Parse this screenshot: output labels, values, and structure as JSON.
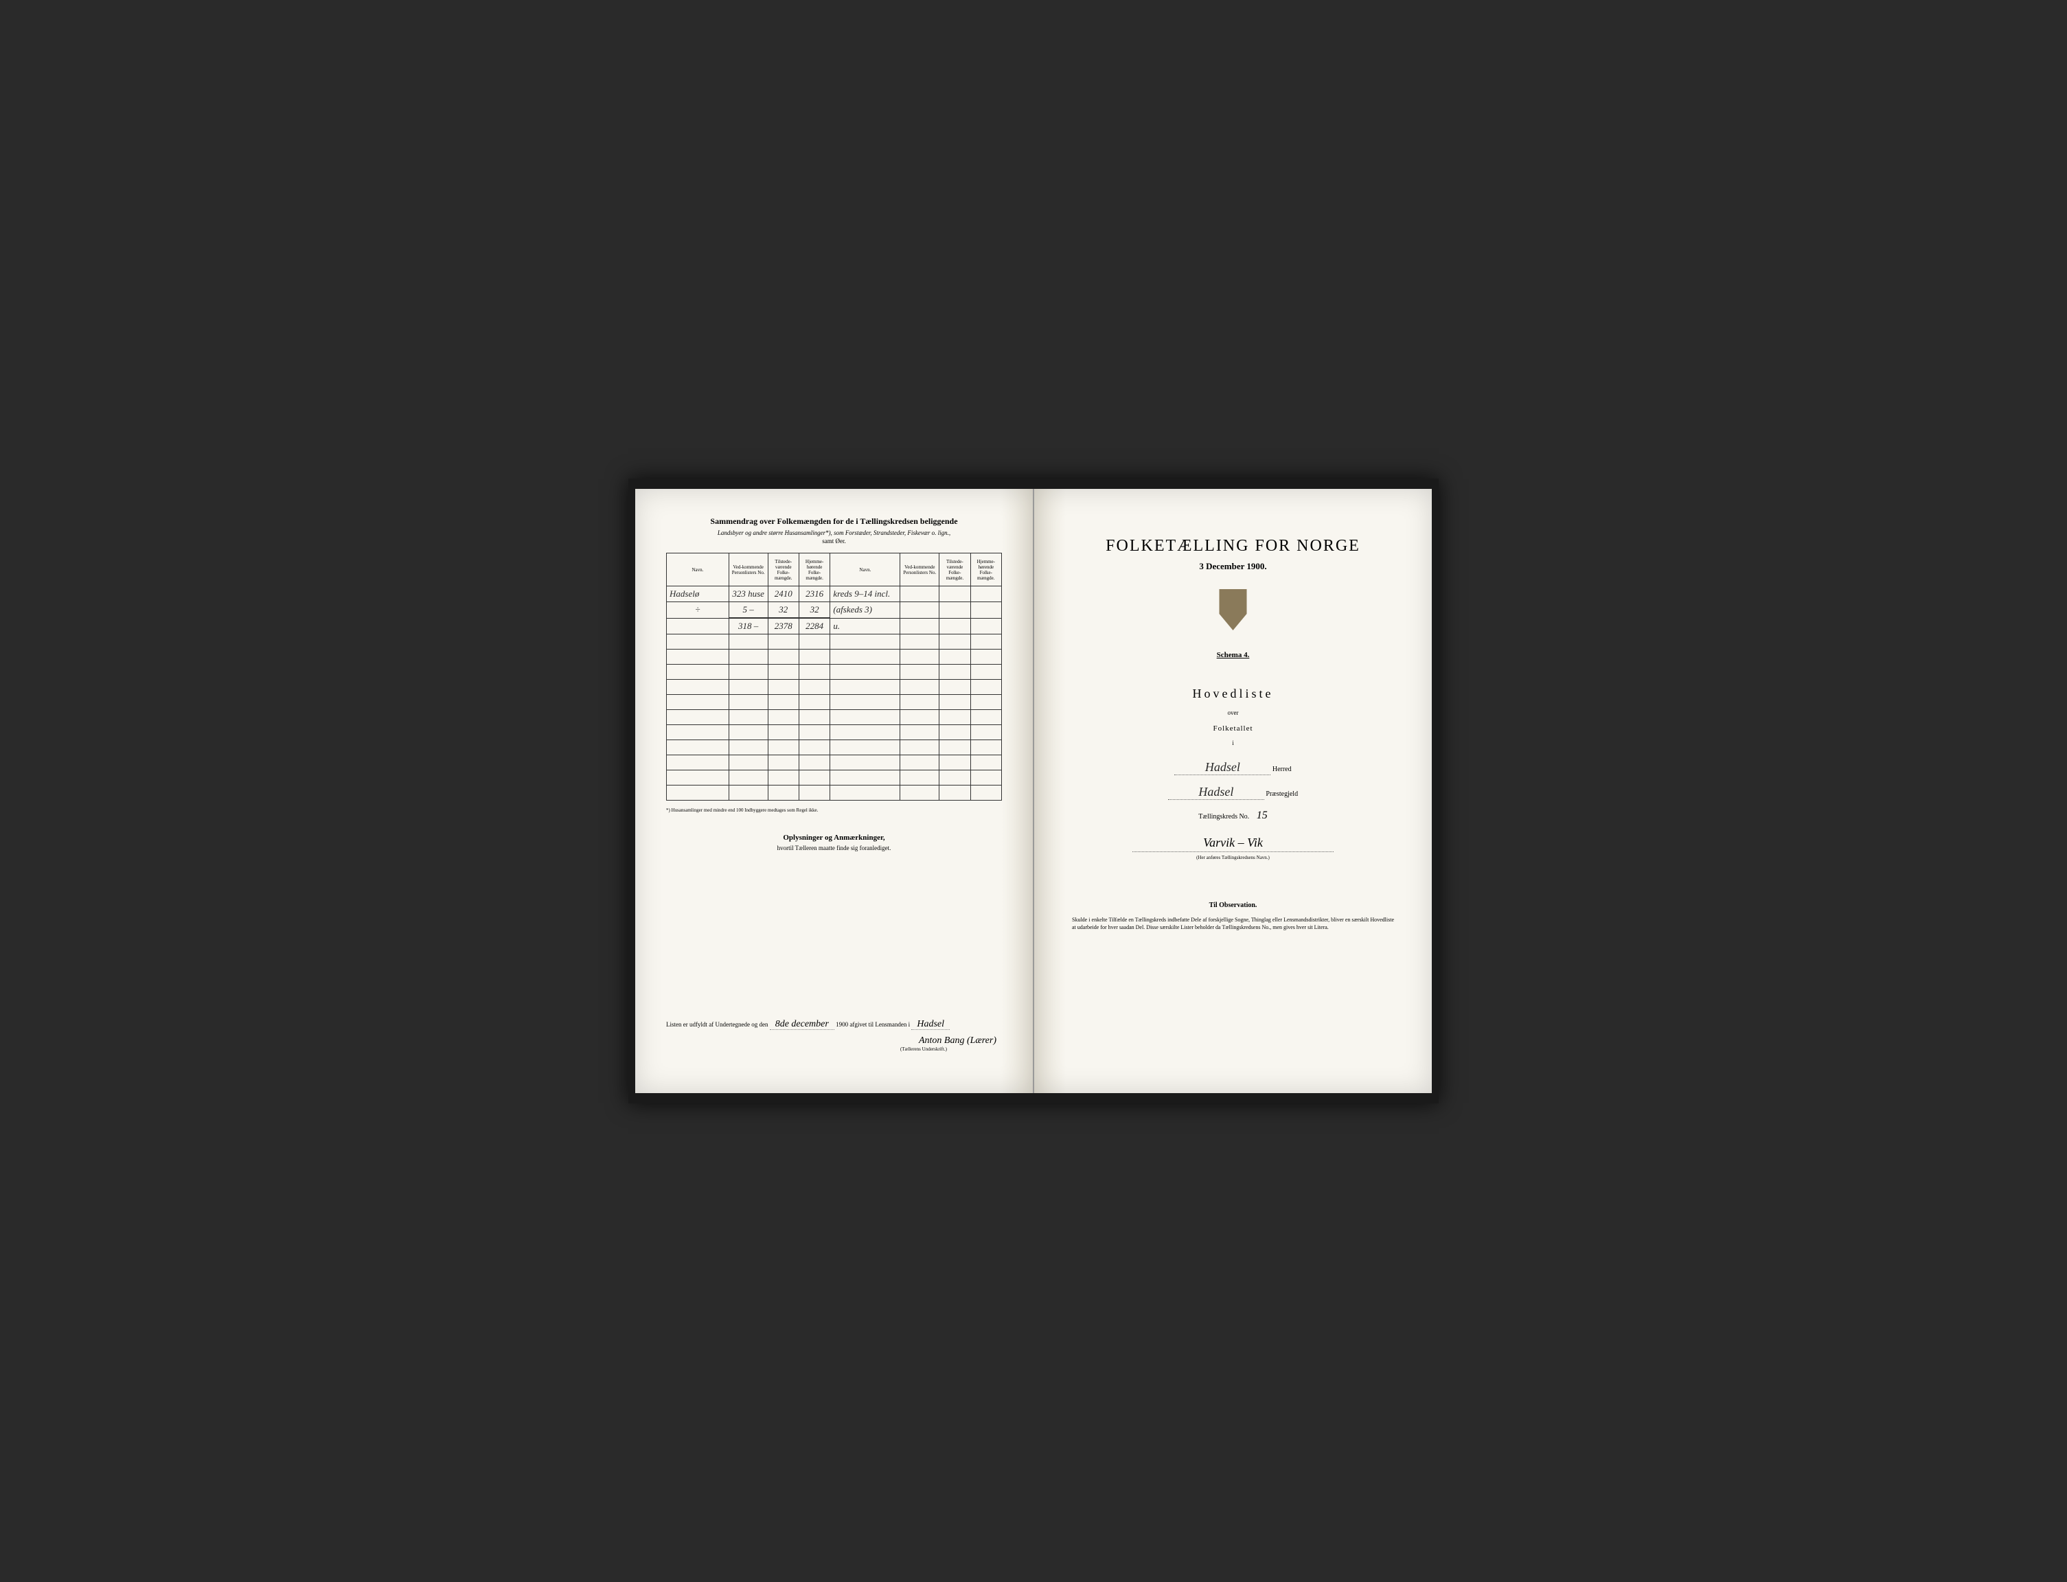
{
  "left": {
    "title": "Sammendrag over Folkemængden for de i Tællingskredsen beliggende",
    "subtitle": "Landsbyer og andre større Husansamlinger*), som Forstæder, Strandsteder, Fiskevær o. lign.,",
    "subtitle2": "samt Øer.",
    "headers": {
      "navn": "Navn.",
      "vedkom": "Ved-kommende Personlisters No.",
      "tilstede": "Tilstede-værende Folke-mængde.",
      "hjemme": "Hjemme-hørende Folke-mængde.",
      "navn2": "Navn.",
      "vedkom2": "Ved-kommende Personlisters No.",
      "tilstede2": "Tilstede-værende Folke-mængde.",
      "hjemme2": "Hjemme-hørende Folke-mængde."
    },
    "rows": [
      {
        "navn": "Hadselø",
        "no": "323 huse",
        "til": "2410",
        "hjem": "2316",
        "navn2": "kreds 9–14 incl.",
        "no2": "",
        "til2": "",
        "hjem2": ""
      },
      {
        "navn": "÷",
        "no": "5 –",
        "til": "32",
        "hjem": "32",
        "navn2": "(afskeds 3)",
        "no2": "",
        "til2": "",
        "hjem2": ""
      },
      {
        "navn": "",
        "no": "318 –",
        "til": "2378",
        "hjem": "2284",
        "navn2": "u.",
        "no2": "",
        "til2": "",
        "hjem2": ""
      }
    ],
    "footnote": "*) Husansamlinger med mindre end 100 Indbyggere medtages som Regel ikke.",
    "oplys_title": "Oplysninger og Anmærkninger,",
    "oplys_sub": "hvortil Tælleren maatte finde sig foranlediget.",
    "submit_prefix": "Listen er udfyldt af Undertegnede og den",
    "submit_date": "8de december",
    "submit_year": "1900 afgivet til Lensmanden i",
    "submit_place": "Hadsel",
    "signature": "Anton Bang (Lærer)",
    "sig_label": "(Tællerens Underskrift.)"
  },
  "right": {
    "title": "FOLKETÆLLING FOR NORGE",
    "date": "3 December 1900.",
    "schema": "Schema 4.",
    "hovedliste": "Hovedliste",
    "over": "over",
    "folketallet": "Folketallet",
    "small_i": "i",
    "herred_value": "Hadsel",
    "herred_label": "Herred",
    "praeste_value": "Hadsel",
    "praeste_label": "Præstegjeld",
    "kreds_label": "Tællingskreds No.",
    "kreds_no": "15",
    "district": "Varvik – Vik",
    "district_note": "(Her anføres Tællingskredsens Navn.)",
    "obs_title": "Til Observation.",
    "obs_text": "Skulde i enkelte Tilfælde en Tællingskreds indbefatte Dele af forskjellige Sogne, Thinglag eller Lensmandsdistrikter, bliver en særskilt Hovedliste at udarbeide for hver saadan Del. Disse særskilte Lister beholder da Tællingskredsens No., men gives hver sit Litera."
  },
  "colors": {
    "paper": "#f8f6f0",
    "ink": "#2a2a2a",
    "border": "#333333",
    "background": "#2a2a2a",
    "coat_arms": "#8a7a5a"
  }
}
